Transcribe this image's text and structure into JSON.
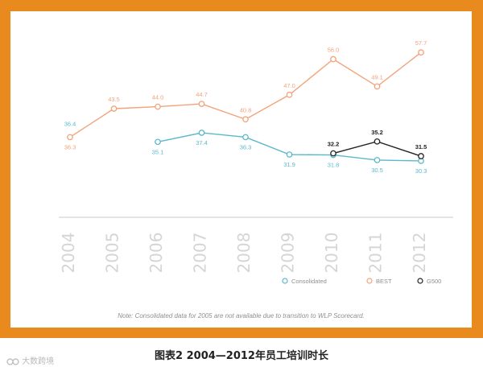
{
  "chart_data": {
    "type": "line",
    "title": "",
    "xlabel": "",
    "ylabel": "",
    "ylim": [
      25,
      62
    ],
    "grid": false,
    "legend_position": "bottom-right",
    "categories": [
      "2004",
      "2005",
      "2006",
      "2007",
      "2008",
      "2009",
      "2010",
      "2011",
      "2012"
    ],
    "series": [
      {
        "name": "Consolidated",
        "color": "#5ab9cc",
        "values": [
          null,
          null,
          35.1,
          37.4,
          36.3,
          31.9,
          31.8,
          30.5,
          30.3
        ],
        "labels": [
          null,
          null,
          "35.1",
          "37.4",
          "36.3",
          "31.9",
          "31.8",
          "30.5",
          "30.3"
        ],
        "label_position": [
          "",
          "",
          "below",
          "below",
          "below",
          "below",
          "below",
          "below",
          "below"
        ]
      },
      {
        "name": "BEST",
        "color": "#f3a37a",
        "values": [
          36.3,
          43.5,
          44.0,
          44.7,
          40.8,
          47.0,
          56.0,
          49.1,
          57.7
        ],
        "labels": [
          "36.3",
          "43.5",
          "44.0",
          "44.7",
          "40.8",
          "47.0",
          "56.0",
          "49.1",
          "57.7"
        ],
        "label_position": [
          "below",
          "above",
          "above",
          "above",
          "above",
          "above",
          "above",
          "above",
          "above"
        ]
      },
      {
        "name": "G500",
        "color": "#222222",
        "values": [
          null,
          null,
          null,
          null,
          null,
          null,
          32.2,
          35.2,
          31.5
        ],
        "labels": [
          null,
          null,
          null,
          null,
          null,
          null,
          "32.2",
          "35.2",
          "31.5"
        ],
        "label_position": [
          "",
          "",
          "",
          "",
          "",
          "",
          "above",
          "above",
          "above"
        ]
      }
    ],
    "extra_labels": [
      {
        "text": "36.4",
        "category": "2004",
        "color": "#5ab9cc",
        "position": "above"
      }
    ],
    "note": "Note: Consolidated data for 2005 are not available due to transition to WLP Scorecard."
  },
  "caption": "图表2   2004—2012年员工培训时长",
  "watermark": "大数跨境",
  "colors": {
    "frame": "#e98a1f",
    "axis": "#c8c8c8",
    "year_text": "#d5d5d5"
  }
}
